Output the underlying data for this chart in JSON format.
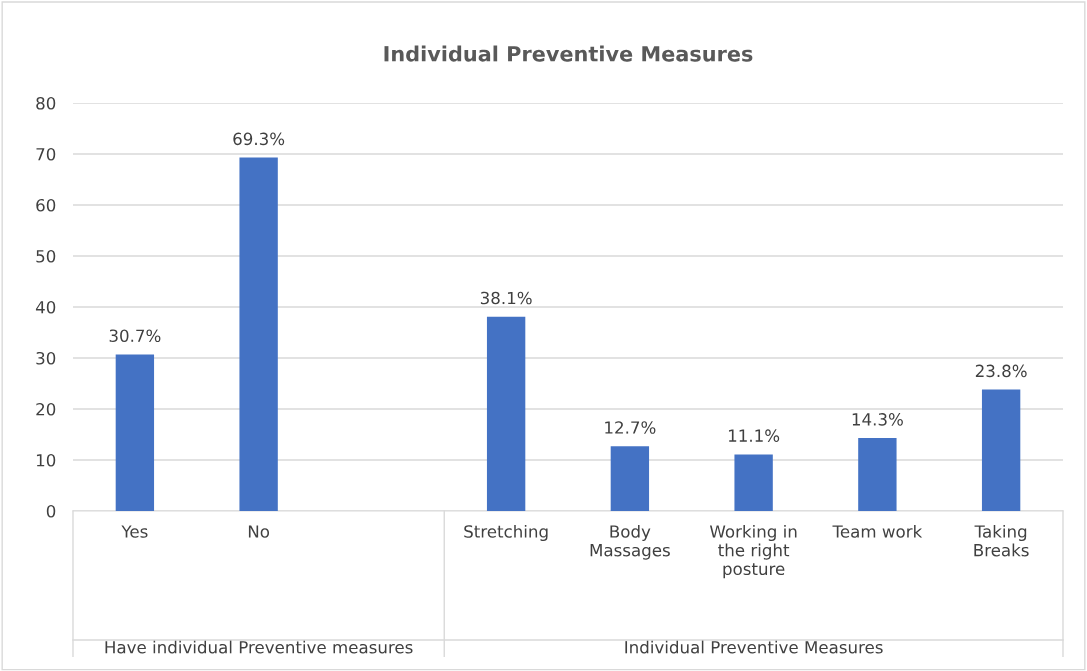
{
  "chart_data": {
    "type": "bar",
    "title": "Individual Preventive Measures",
    "categories": [
      "Yes",
      "No",
      null,
      "Stretching",
      "Body Massages",
      "Working in the right posture",
      "Team work",
      "Taking Breaks"
    ],
    "values": [
      30.7,
      69.3,
      null,
      38.1,
      12.7,
      11.1,
      14.3,
      23.8
    ],
    "value_labels": [
      "30.7%",
      "69.3%",
      null,
      "38.1%",
      "12.7%",
      "11.1%",
      "14.3%",
      "23.8%"
    ],
    "color": "#4472c4",
    "ylim": [
      0,
      80
    ],
    "yticks": [
      0,
      10,
      20,
      30,
      40,
      50,
      60,
      70,
      80
    ],
    "grid": "y",
    "annotations": [
      "Have individual Preventive measures",
      "Individual Preventive Measures"
    ]
  }
}
